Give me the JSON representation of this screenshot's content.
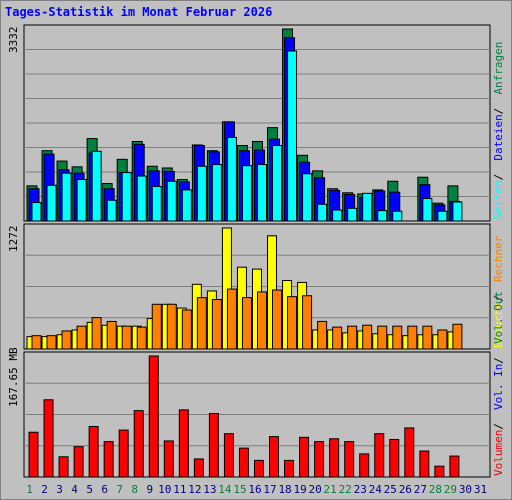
{
  "title": "Tages-Statistik im Monat Februar 2026",
  "colors": {
    "anfragen": "#008040",
    "dateien": "#0000ff",
    "seiten": "#00ffff",
    "besuche": "#ffff00",
    "rechner": "#ff8000",
    "volumen": "#ff0000",
    "weekend_day": "#008040",
    "weekday": "#000080",
    "title": "#0000ff"
  },
  "right_legend": [
    {
      "text": "Anfragen",
      "color": "#008040"
    },
    {
      "text": "Dateien",
      "color": "#0000ff"
    },
    {
      "text": "Seiten",
      "color": "#00ffff"
    },
    {
      "text": "Besuche",
      "color": "#ffff00"
    },
    {
      "text": "Rechner",
      "color": "#ff8000"
    },
    {
      "text": "Volumen",
      "color": "#ff0000"
    },
    {
      "text": "Vol. In",
      "color": "#0000ff"
    },
    {
      "text": "Vol. Out",
      "color": "#008040"
    }
  ],
  "chart_data": [
    {
      "type": "bar",
      "max_label": "3332",
      "ylim": [
        0,
        3332
      ],
      "grid": true,
      "categories": [
        "1",
        "2",
        "3",
        "4",
        "5",
        "6",
        "7",
        "8",
        "9",
        "10",
        "11",
        "12",
        "13",
        "14",
        "15",
        "16",
        "17",
        "18",
        "19",
        "20",
        "21",
        "22",
        "23",
        "24",
        "25",
        "26",
        "27",
        "28",
        "29",
        "30",
        "31"
      ],
      "series": [
        {
          "name": "Anfragen",
          "values": [
            610,
            1220,
            1040,
            940,
            1430,
            650,
            1070,
            1380,
            950,
            920,
            720,
            1320,
            1220,
            1720,
            1310,
            1380,
            1620,
            3332,
            1140,
            870,
            560,
            490,
            470,
            540,
            690,
            0,
            760,
            310,
            610,
            0,
            0
          ]
        },
        {
          "name": "Dateien",
          "values": [
            560,
            1160,
            890,
            830,
            1180,
            560,
            840,
            1330,
            870,
            860,
            680,
            1310,
            1200,
            1720,
            1220,
            1230,
            1420,
            3180,
            1020,
            750,
            530,
            460,
            410,
            520,
            500,
            0,
            630,
            280,
            340,
            0,
            0
          ]
        },
        {
          "name": "Seiten",
          "values": [
            320,
            620,
            830,
            720,
            1210,
            360,
            840,
            780,
            600,
            690,
            540,
            950,
            980,
            1450,
            960,
            980,
            1310,
            2950,
            820,
            290,
            190,
            220,
            480,
            180,
            170,
            0,
            390,
            170,
            330,
            0,
            0
          ]
        }
      ]
    },
    {
      "type": "bar",
      "max_label": "1272",
      "ylim": [
        0,
        1272
      ],
      "grid": true,
      "categories": [
        "1",
        "2",
        "3",
        "4",
        "5",
        "6",
        "7",
        "8",
        "9",
        "10",
        "11",
        "12",
        "13",
        "14",
        "15",
        "16",
        "17",
        "18",
        "19",
        "20",
        "21",
        "22",
        "23",
        "24",
        "25",
        "26",
        "27",
        "28",
        "29",
        "30",
        "31"
      ],
      "series": [
        {
          "name": "Besuche",
          "values": [
            130,
            130,
            150,
            200,
            280,
            250,
            240,
            240,
            320,
            470,
            430,
            680,
            610,
            1272,
            860,
            840,
            1190,
            720,
            700,
            200,
            200,
            170,
            190,
            160,
            150,
            140,
            150,
            150,
            180,
            0,
            0
          ]
        },
        {
          "name": "Rechner",
          "values": [
            140,
            140,
            190,
            240,
            330,
            290,
            240,
            230,
            470,
            470,
            410,
            540,
            520,
            630,
            540,
            600,
            620,
            550,
            560,
            290,
            230,
            240,
            250,
            240,
            240,
            240,
            240,
            200,
            260,
            0,
            0
          ]
        }
      ]
    },
    {
      "type": "bar",
      "axis_label": "167.65 MB",
      "ylim": [
        0,
        167.65
      ],
      "grid": true,
      "categories": [
        "1",
        "2",
        "3",
        "4",
        "5",
        "6",
        "7",
        "8",
        "9",
        "10",
        "11",
        "12",
        "13",
        "14",
        "15",
        "16",
        "17",
        "18",
        "19",
        "20",
        "21",
        "22",
        "23",
        "24",
        "25",
        "26",
        "27",
        "28",
        "29",
        "30",
        "31"
      ],
      "series": [
        {
          "name": "Volumen",
          "values": [
            62,
            107,
            28,
            42,
            70,
            49,
            65,
            92,
            167.65,
            50,
            93,
            25,
            88,
            60,
            40,
            23,
            56,
            23,
            55,
            49,
            53,
            49,
            32,
            60,
            52,
            68,
            36,
            15,
            29,
            0,
            0
          ]
        }
      ]
    }
  ],
  "x_axis": {
    "labels": [
      "1",
      "2",
      "3",
      "4",
      "5",
      "6",
      "7",
      "8",
      "9",
      "10",
      "11",
      "12",
      "13",
      "14",
      "15",
      "16",
      "17",
      "18",
      "19",
      "20",
      "21",
      "22",
      "23",
      "24",
      "25",
      "26",
      "27",
      "28",
      "29",
      "30",
      "31"
    ],
    "weekend_days": [
      "1",
      "7",
      "8",
      "14",
      "15",
      "21",
      "22",
      "28",
      "29"
    ]
  }
}
